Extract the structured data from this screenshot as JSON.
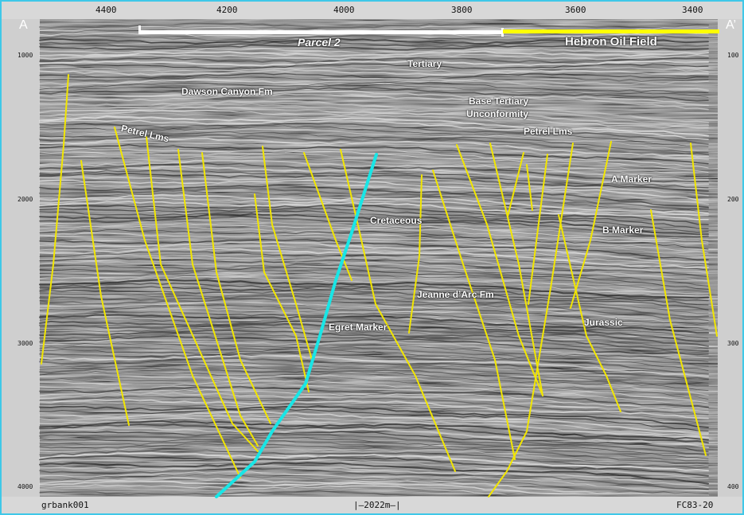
{
  "section": {
    "start_label": "A",
    "end_label": "A’",
    "top_shotpoints": [
      "4400",
      "4200",
      "4000",
      "3800",
      "3600",
      "3400"
    ],
    "left_times": [
      "1000",
      "2000",
      "3000",
      "4000"
    ],
    "right_times": [
      "100",
      "200",
      "300",
      "400"
    ],
    "footer_left": "grbank001",
    "footer_center": "|—2022m—|",
    "footer_right": "FC83-20"
  },
  "bars": {
    "parcel_label": "Parcel 2",
    "parcel_color": "#ffffff",
    "field_label": "Hebron  Oil Field",
    "field_color": "#ffff00"
  },
  "annotations": {
    "tertiary": "Tertiary",
    "dawson": "Dawson Canyon Fm",
    "base_tertiary_1": "Base Tertiary",
    "base_tertiary_2": "Unconformity",
    "petrel_left": "Petrel Lms",
    "petrel_right": "Petrel Lms",
    "a_marker": "A Marker",
    "b_marker": "B Marker",
    "cretaceous": "Cretaceous",
    "jeanne": "Jeanne d’Arc Fm",
    "egret": "Egret Marker",
    "jurassic": "Jurassic"
  },
  "colors": {
    "fault": "#f2e600",
    "key_fault": "#18e6e6",
    "frame": "#3fc8e8"
  }
}
